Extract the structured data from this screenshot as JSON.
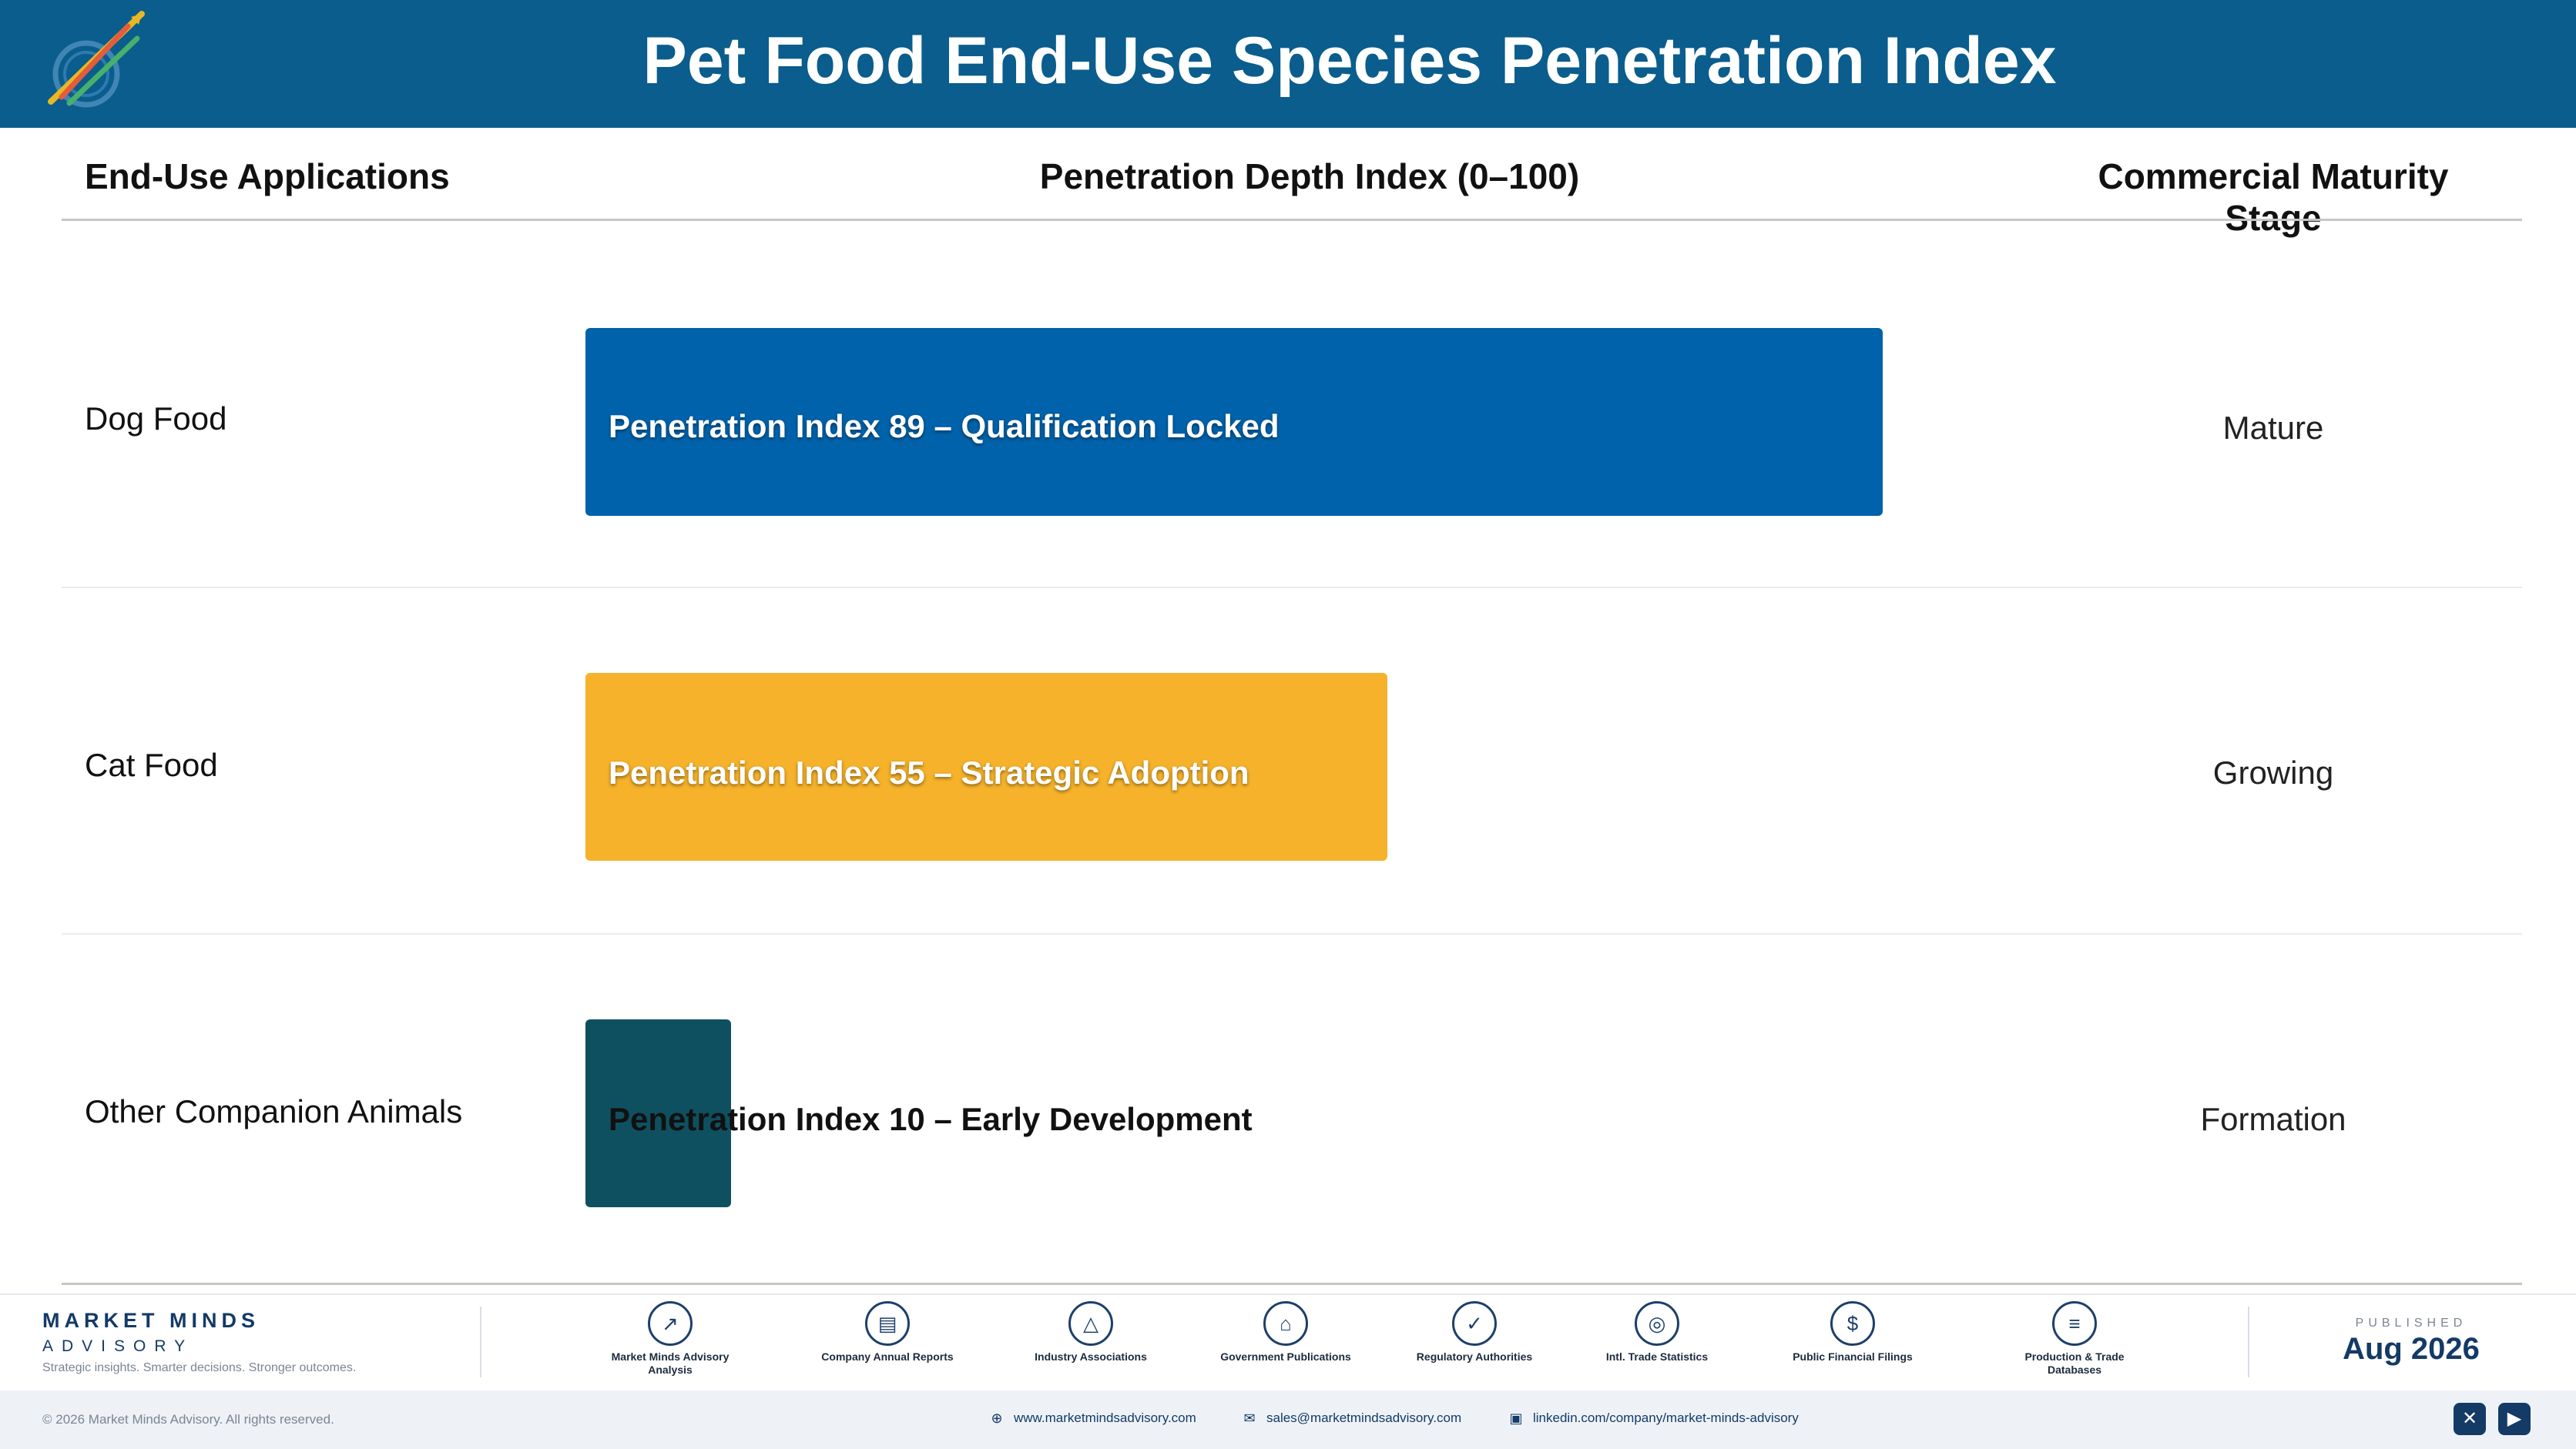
{
  "header": {
    "title": "Pet Food End-Use Species Penetration Index",
    "logo_caption": "Market Minds Advisory"
  },
  "columns": {
    "applications": "End-Use Applications",
    "penetration": "Penetration Depth Index (0–100)",
    "maturity": "Commercial Maturity Stage"
  },
  "chart_data": {
    "type": "bar",
    "orientation": "horizontal",
    "title": "Pet Food End-Use Species Penetration Index",
    "xlabel": "Penetration Depth Index (0–100)",
    "xlim": [
      0,
      100
    ],
    "categories": [
      "Dog Food",
      "Cat Food",
      "Other Companion Animals"
    ],
    "values": [
      89,
      55,
      10
    ],
    "data_labels": [
      "Penetration Index 89 – Qualification Locked",
      "Penetration Index 55 – Strategic Adoption",
      "Penetration Index 10 – Early Development"
    ],
    "maturity_stage": [
      "Mature",
      "Growing",
      "Formation"
    ],
    "colors": [
      "#0062aa",
      "#f5b22a",
      "#0f5060"
    ]
  },
  "footer": {
    "brand_name": "MARKET MINDS",
    "brand_sub": "ADVISORY",
    "tagline": "Strategic insights. Smarter decisions. Stronger outcomes.",
    "sources": [
      {
        "label": "Market Minds Advisory Analysis",
        "icon": "trend-chart-icon"
      },
      {
        "label": "Company Annual Reports",
        "icon": "document-icon"
      },
      {
        "label": "Industry Associations",
        "icon": "network-icon"
      },
      {
        "label": "Government Publications",
        "icon": "government-building-icon"
      },
      {
        "label": "Regulatory Authorities",
        "icon": "shield-check-icon"
      },
      {
        "label": "Intl. Trade Statistics",
        "icon": "globe-icon"
      },
      {
        "label": "Public Financial Filings",
        "icon": "dollar-coin-icon"
      },
      {
        "label": "Production & Trade Databases",
        "icon": "database-icon"
      }
    ],
    "published_label": "PUBLISHED",
    "published_date": "Aug 2026",
    "copyright": "© 2026 Market Minds Advisory. All rights reserved.",
    "website": "www.marketmindsadvisory.com",
    "email": "sales@marketmindsadvisory.com",
    "linkedin": "linkedin.com/company/market-minds-advisory"
  }
}
